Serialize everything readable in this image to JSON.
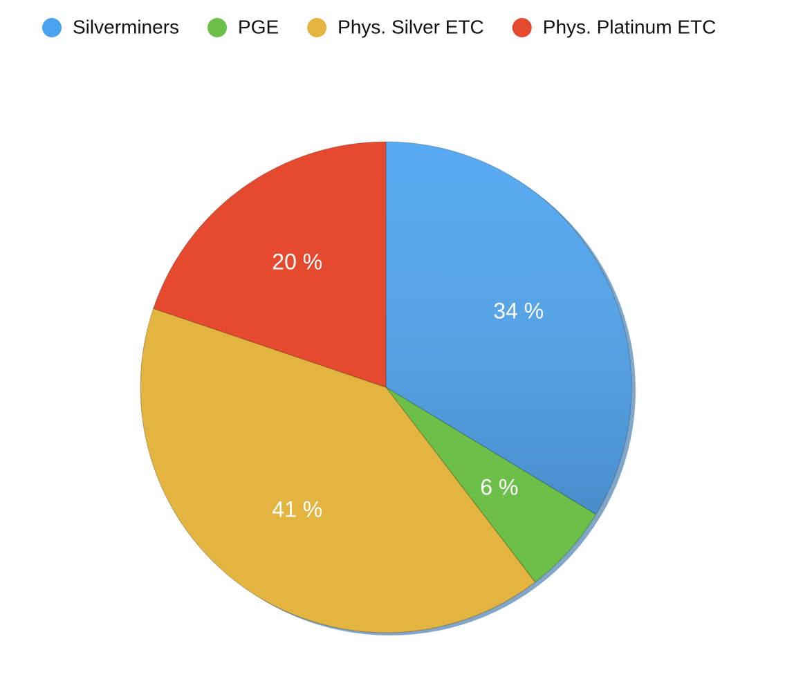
{
  "chart_data": {
    "type": "pie",
    "categories": [
      "Silverminers",
      "PGE",
      "Phys. Silver ETC",
      "Phys. Platinum ETC"
    ],
    "values": [
      34,
      6,
      41,
      20
    ],
    "value_labels": [
      "34 %",
      "6 %",
      "41 %",
      "20 %"
    ],
    "colors": [
      "#4aa3f0",
      "#6cc04a",
      "#e3b43f",
      "#e64a2e"
    ],
    "legend": "top"
  }
}
